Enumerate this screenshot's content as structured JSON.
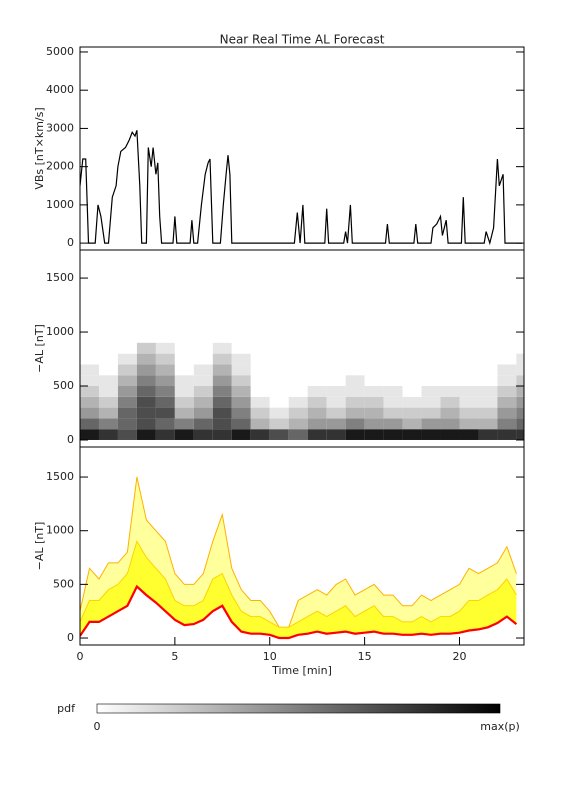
{
  "chart_data": [
    {
      "type": "line",
      "title": "Near Real Time AL Forecast",
      "ylabel": "VBs [nT×km/s]",
      "color": "#000000",
      "xlim": [
        0,
        23.4
      ],
      "ylim": [
        -180,
        5130
      ],
      "yticks": [
        0,
        1000,
        2000,
        3000,
        4000,
        5000
      ],
      "x": [
        0,
        0.15,
        0.3,
        0.45,
        0.8,
        0.95,
        1.1,
        1.3,
        1.5,
        1.7,
        1.9,
        2.0,
        2.15,
        2.4,
        2.6,
        2.75,
        2.9,
        3.0,
        3.15,
        3.25,
        3.5,
        3.6,
        3.75,
        3.85,
        4.0,
        4.1,
        4.2,
        4.3,
        4.9,
        5.0,
        5.1,
        5.8,
        5.9,
        6.0,
        6.2,
        6.4,
        6.6,
        6.75,
        6.85,
        7.0,
        7.4,
        7.55,
        7.7,
        7.8,
        7.9,
        8.0,
        11.3,
        11.45,
        11.6,
        11.75,
        11.85,
        12.9,
        13.0,
        13.1,
        13.9,
        14.0,
        14.1,
        14.25,
        14.35,
        16.1,
        16.2,
        16.3,
        17.6,
        17.7,
        17.8,
        18.5,
        18.6,
        18.8,
        19.0,
        19.1,
        19.3,
        19.4,
        20.1,
        20.2,
        20.3,
        21.3,
        21.4,
        21.6,
        21.8,
        22.0,
        22.1,
        22.3,
        22.4,
        23.3
      ],
      "values": [
        1500,
        2200,
        2200,
        0,
        0,
        1000,
        700,
        0,
        0,
        1200,
        1500,
        2000,
        2400,
        2500,
        2700,
        2900,
        2800,
        2950,
        1500,
        0,
        0,
        2500,
        2000,
        2500,
        1800,
        2100,
        700,
        0,
        0,
        700,
        0,
        0,
        600,
        0,
        0,
        1000,
        1800,
        2100,
        2200,
        0,
        0,
        1000,
        1800,
        2300,
        1800,
        0,
        0,
        800,
        0,
        1000,
        0,
        0,
        900,
        0,
        0,
        300,
        0,
        1000,
        0,
        0,
        500,
        0,
        0,
        500,
        0,
        0,
        400,
        500,
        700,
        200,
        600,
        0,
        0,
        1200,
        0,
        0,
        300,
        0,
        400,
        2200,
        1500,
        1800,
        0,
        0
      ]
    },
    {
      "type": "heatmap",
      "ylabel": "−AL [nT]",
      "xlim": [
        0,
        23.4
      ],
      "ylim": [
        -65,
        1760
      ],
      "yticks": [
        0,
        500,
        1000,
        1500
      ],
      "x_bins": [
        0,
        1,
        2,
        3,
        4,
        5,
        6,
        7,
        8,
        9,
        10,
        11,
        12,
        13,
        14,
        15,
        16,
        17,
        18,
        19,
        20,
        21,
        22,
        23,
        24
      ],
      "y_bins": [
        0,
        100,
        200,
        300,
        400,
        500,
        600,
        700,
        800,
        900
      ],
      "z": [
        [
          0.9,
          0.8,
          0.7,
          0.9,
          0.8,
          0.9,
          0.8,
          0.8,
          0.9,
          0.8,
          0.7,
          0.6,
          0.8,
          0.8,
          0.9,
          0.9,
          0.9,
          0.9,
          0.9,
          0.9,
          0.9,
          0.8,
          0.8,
          0.8
        ],
        [
          0.6,
          0.5,
          0.6,
          0.7,
          0.6,
          0.5,
          0.6,
          0.7,
          0.6,
          0.3,
          0.2,
          0.3,
          0.4,
          0.4,
          0.5,
          0.4,
          0.4,
          0.3,
          0.4,
          0.4,
          0.3,
          0.3,
          0.5,
          0.6
        ],
        [
          0.4,
          0.3,
          0.6,
          0.7,
          0.7,
          0.3,
          0.4,
          0.7,
          0.5,
          0.2,
          0.1,
          0.2,
          0.3,
          0.2,
          0.3,
          0.3,
          0.2,
          0.2,
          0.2,
          0.3,
          0.2,
          0.2,
          0.4,
          0.5
        ],
        [
          0.3,
          0.2,
          0.5,
          0.7,
          0.6,
          0.2,
          0.3,
          0.6,
          0.4,
          0.1,
          0,
          0.1,
          0.2,
          0.1,
          0.2,
          0.2,
          0.1,
          0.1,
          0.1,
          0.2,
          0.1,
          0.1,
          0.3,
          0.4
        ],
        [
          0.2,
          0.1,
          0.4,
          0.6,
          0.5,
          0.1,
          0.2,
          0.5,
          0.3,
          0,
          0,
          0,
          0.1,
          0.1,
          0.1,
          0.1,
          0.1,
          0,
          0.1,
          0.1,
          0.1,
          0.1,
          0.2,
          0.3
        ],
        [
          0.1,
          0.1,
          0.3,
          0.5,
          0.4,
          0.1,
          0.1,
          0.4,
          0.2,
          0,
          0,
          0,
          0,
          0,
          0.1,
          0,
          0,
          0,
          0,
          0,
          0,
          0,
          0.1,
          0.2
        ],
        [
          0.1,
          0,
          0.2,
          0.4,
          0.3,
          0,
          0.1,
          0.3,
          0.1,
          0,
          0,
          0,
          0,
          0,
          0,
          0,
          0,
          0,
          0,
          0,
          0,
          0,
          0.1,
          0.1
        ],
        [
          0,
          0,
          0.1,
          0.3,
          0.2,
          0,
          0,
          0.2,
          0.1,
          0,
          0,
          0,
          0,
          0,
          0,
          0,
          0,
          0,
          0,
          0,
          0,
          0,
          0,
          0.1
        ],
        [
          0,
          0,
          0,
          0.2,
          0.1,
          0,
          0,
          0.1,
          0,
          0,
          0,
          0,
          0,
          0,
          0,
          0,
          0,
          0,
          0,
          0,
          0,
          0,
          0,
          0
        ]
      ]
    },
    {
      "type": "area",
      "ylabel": "−AL [nT]",
      "xlabel": "Time [min]",
      "xlim": [
        0,
        23.4
      ],
      "ylim": [
        -65,
        1780
      ],
      "yticks": [
        0,
        500,
        1000,
        1500
      ],
      "xticks": [
        0,
        5,
        10,
        15,
        20
      ],
      "x": [
        0,
        0.5,
        1,
        1.5,
        2,
        2.5,
        3,
        3.5,
        4,
        4.5,
        5,
        5.5,
        6,
        6.5,
        7,
        7.5,
        8,
        8.5,
        9,
        9.5,
        10,
        10.5,
        11,
        11.5,
        12,
        12.5,
        13,
        13.5,
        14,
        14.5,
        15,
        15.5,
        16,
        16.5,
        17,
        17.5,
        18,
        18.5,
        19,
        19.5,
        20,
        20.5,
        21,
        21.5,
        22,
        22.5,
        23
      ],
      "series": [
        {
          "color": "#ffb000",
          "fill": "#ffff9c",
          "values": [
            250,
            650,
            550,
            700,
            700,
            800,
            1500,
            1100,
            1000,
            900,
            600,
            500,
            500,
            600,
            900,
            1150,
            650,
            450,
            350,
            350,
            250,
            100,
            100,
            350,
            400,
            450,
            400,
            500,
            550,
            400,
            450,
            500,
            400,
            400,
            300,
            300,
            400,
            350,
            400,
            450,
            500,
            650,
            600,
            650,
            700,
            850,
            600
          ]
        },
        {
          "color": "#ffd200",
          "fill": "#ffff30",
          "values": [
            150,
            350,
            350,
            450,
            500,
            600,
            900,
            750,
            650,
            550,
            350,
            300,
            300,
            350,
            550,
            600,
            400,
            250,
            200,
            200,
            150,
            100,
            100,
            150,
            200,
            250,
            200,
            250,
            300,
            200,
            250,
            300,
            200,
            200,
            150,
            150,
            200,
            150,
            200,
            200,
            250,
            350,
            350,
            400,
            450,
            550,
            400
          ]
        },
        {
          "color": "#ff0000",
          "fill": "#ffffff",
          "values": [
            20,
            150,
            150,
            200,
            250,
            300,
            480,
            400,
            330,
            250,
            170,
            120,
            130,
            170,
            250,
            300,
            150,
            60,
            40,
            40,
            30,
            0,
            0,
            30,
            40,
            60,
            40,
            50,
            60,
            40,
            50,
            60,
            40,
            40,
            30,
            30,
            40,
            30,
            40,
            40,
            50,
            70,
            80,
            100,
            140,
            200,
            130
          ]
        }
      ]
    }
  ],
  "colorbar": {
    "label": "pdf",
    "min_label": "0",
    "max_label": "max(p)"
  }
}
